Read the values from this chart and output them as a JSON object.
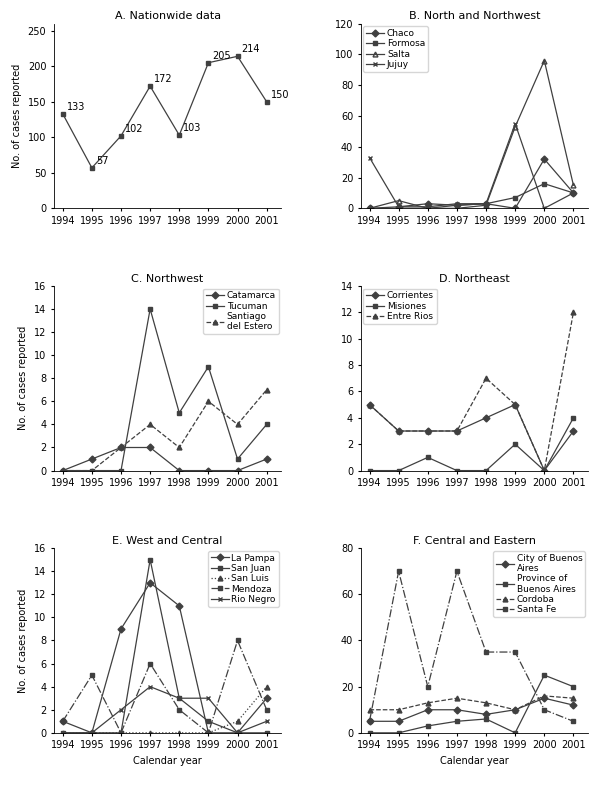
{
  "years": [
    1994,
    1995,
    1996,
    1997,
    1998,
    1999,
    2000,
    2001
  ],
  "A": {
    "title": "A. Nationwide data",
    "values": [
      133,
      57,
      102,
      172,
      103,
      205,
      214,
      150
    ],
    "ylim": [
      0,
      260
    ],
    "yticks": [
      0,
      50,
      100,
      150,
      200,
      250
    ]
  },
  "B": {
    "title": "B. North and Northwest",
    "ylim": [
      0,
      120
    ],
    "yticks": [
      0,
      20,
      40,
      60,
      80,
      100,
      120
    ],
    "series": {
      "Chaco": [
        0,
        1,
        3,
        2,
        3,
        0,
        32,
        10
      ],
      "Formosa": [
        0,
        0,
        0,
        2,
        3,
        7,
        16,
        10
      ],
      "Salta": [
        0,
        5,
        0,
        0,
        2,
        53,
        96,
        15
      ],
      "Jujuy": [
        33,
        1,
        1,
        3,
        3,
        55,
        0,
        10
      ]
    },
    "styles": {
      "Chaco": [
        "-",
        "D",
        true
      ],
      "Formosa": [
        "-",
        "s",
        true
      ],
      "Salta": [
        "-",
        "^",
        false
      ],
      "Jujuy": [
        "-",
        "x",
        true
      ]
    }
  },
  "C": {
    "title": "C. Northwest",
    "ylim": [
      0,
      16
    ],
    "yticks": [
      0,
      2,
      4,
      6,
      8,
      10,
      12,
      14,
      16
    ],
    "series": {
      "Catamarca": [
        0,
        1,
        2,
        2,
        0,
        0,
        0,
        1
      ],
      "Tucuman": [
        0,
        0,
        0,
        14,
        5,
        9,
        1,
        4
      ],
      "Santiago del Estero": [
        0,
        0,
        2,
        4,
        2,
        6,
        4,
        7
      ]
    },
    "styles": {
      "Catamarca": [
        "-",
        "D",
        true
      ],
      "Tucuman": [
        "-",
        "s",
        true
      ],
      "Santiago del Estero": [
        "--",
        "^",
        true
      ]
    },
    "legend_labels": {
      "Catamarca": "Catamarca",
      "Tucuman": "Tucuman",
      "Santiago del Estero": "Santiago\ndel Estero"
    }
  },
  "D": {
    "title": "D. Northeast",
    "ylim": [
      0,
      14
    ],
    "yticks": [
      0,
      2,
      4,
      6,
      8,
      10,
      12,
      14
    ],
    "series": {
      "Corrientes": [
        5,
        3,
        3,
        3,
        4,
        5,
        0,
        3
      ],
      "Misiones": [
        0,
        0,
        1,
        0,
        0,
        2,
        0,
        4
      ],
      "Entre Rios": [
        5,
        3,
        3,
        3,
        7,
        5,
        0,
        12
      ]
    },
    "styles": {
      "Corrientes": [
        "-",
        "D",
        true
      ],
      "Misiones": [
        "-",
        "s",
        true
      ],
      "Entre Rios": [
        "--",
        "^",
        true
      ]
    }
  },
  "E": {
    "title": "E. West and Central",
    "ylim": [
      0,
      16
    ],
    "yticks": [
      0,
      2,
      4,
      6,
      8,
      10,
      12,
      14,
      16
    ],
    "series": {
      "La Pampa": [
        1,
        0,
        9,
        13,
        11,
        0,
        0,
        3
      ],
      "San Juan": [
        0,
        0,
        0,
        15,
        3,
        1,
        0,
        0
      ],
      "San Luis": [
        0,
        0,
        0,
        0,
        0,
        0,
        1,
        4
      ],
      "Mendoza": [
        1,
        5,
        0,
        6,
        2,
        0,
        8,
        2
      ],
      "Rio Negro": [
        0,
        0,
        2,
        4,
        3,
        3,
        0,
        1
      ]
    },
    "styles": {
      "La Pampa": [
        "-",
        "D",
        true
      ],
      "San Juan": [
        "-",
        "s",
        true
      ],
      "San Luis": [
        ":",
        "^",
        true
      ],
      "Mendoza": [
        "-.",
        "s",
        true
      ],
      "Rio Negro": [
        "-",
        "x",
        true
      ]
    }
  },
  "F": {
    "title": "F. Central and Eastern",
    "ylim": [
      0,
      80
    ],
    "yticks": [
      0,
      20,
      40,
      60,
      80
    ],
    "series": {
      "City of Buenos Aires": [
        5,
        5,
        10,
        10,
        8,
        10,
        15,
        12
      ],
      "Province of Buenos Aires": [
        0,
        0,
        3,
        5,
        6,
        0,
        25,
        20
      ],
      "Cordoba": [
        10,
        10,
        13,
        15,
        13,
        10,
        16,
        15
      ],
      "Santa Fe": [
        5,
        70,
        20,
        70,
        35,
        35,
        10,
        5
      ]
    },
    "styles": {
      "City of Buenos Aires": [
        "-",
        "D",
        true
      ],
      "Province of Buenos Aires": [
        "-",
        "s",
        true
      ],
      "Cordoba": [
        "--",
        "^",
        true
      ],
      "Santa Fe": [
        "-.",
        "s",
        true
      ]
    },
    "legend_labels": {
      "City of Buenos Aires": "City of Buenos\nAires",
      "Province of Buenos Aires": "Province of\nBuenos Aires",
      "Cordoba": "Cordoba",
      "Santa Fe": "Santa Fe"
    }
  },
  "ylabel": "No. of cases reported",
  "xlabel": "Calendar year",
  "dark_gray": "#404040",
  "light_gray": "#909090",
  "label_fontsize": 7,
  "title_fontsize": 8,
  "tick_fontsize": 7,
  "legend_fontsize": 6.5
}
